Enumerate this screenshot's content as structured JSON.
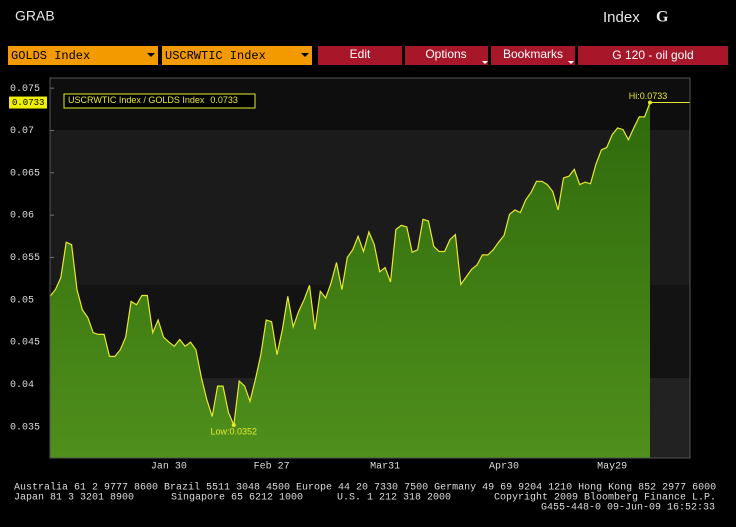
{
  "ui": {
    "top_left": "GRAB",
    "top_right_text": "Index",
    "top_right_key": "G",
    "field1": "GOLDS Index",
    "field2": "USCRWTIC Index",
    "buttons": [
      "Edit",
      "Options",
      "Bookmarks"
    ],
    "page_title": "G 120 - oil gold",
    "footer": [
      "Australia 61 2 9777 8600 Brazil 5511 3048 4500 Europe 44 20 7330 7500 Germany 49 69 9204 1210 Hong Kong 852 2977 6000",
      "Japan 81 3 3201 8900",
      "Singapore 65 6212 1000",
      "U.S. 1 212 318 2000",
      "Copyright 2009 Bloomberg Finance L.P.",
      "G455-448-0 09-Jun-09 16:52:33"
    ]
  },
  "chart_data": {
    "type": "area",
    "categories": [
      null,
      null,
      null,
      null,
      null,
      null,
      null,
      null,
      null,
      null,
      null,
      null,
      null,
      null,
      null,
      null,
      null,
      null,
      null,
      null,
      null,
      null,
      "Jan 30",
      null,
      null,
      null,
      null,
      null,
      null,
      null,
      null,
      null,
      null,
      null,
      null,
      null,
      null,
      null,
      null,
      null,
      null,
      "Feb 27",
      null,
      null,
      null,
      null,
      null,
      null,
      null,
      null,
      null,
      null,
      null,
      null,
      null,
      null,
      null,
      null,
      null,
      null,
      null,
      null,
      "Mar31",
      null,
      null,
      null,
      null,
      null,
      null,
      null,
      null,
      null,
      null,
      null,
      null,
      null,
      null,
      null,
      null,
      null,
      null,
      null,
      null,
      null,
      "Apr30",
      null,
      null,
      null,
      null,
      null,
      null,
      null,
      null,
      null,
      null,
      null,
      null,
      null,
      null,
      null,
      null,
      null,
      null,
      null,
      "May29",
      null,
      null,
      null,
      null,
      null,
      null,
      null
    ],
    "series": [
      {
        "name": "USCRWTIC Index / GOLDS Index",
        "color": "#e8e830",
        "fill": "#3f7f14",
        "values": [
          0.0504,
          0.0512,
          0.0526,
          0.0568,
          0.0565,
          0.0512,
          0.0488,
          0.0479,
          0.0461,
          0.0459,
          0.0459,
          0.0433,
          0.0433,
          0.0441,
          0.0456,
          0.0498,
          0.0494,
          0.0505,
          0.0505,
          0.0461,
          0.0476,
          0.0456,
          0.045,
          0.0445,
          0.0453,
          0.0445,
          0.045,
          0.0441,
          0.0408,
          0.0382,
          0.0362,
          0.0398,
          0.0398,
          0.0367,
          0.0352,
          0.0404,
          0.0398,
          0.038,
          0.0406,
          0.0435,
          0.0476,
          0.0474,
          0.0435,
          0.0465,
          0.0504,
          0.0468,
          0.0486,
          0.05,
          0.0517,
          0.0465,
          0.051,
          0.0502,
          0.052,
          0.0544,
          0.0512,
          0.055,
          0.0559,
          0.0575,
          0.0557,
          0.058,
          0.0565,
          0.0533,
          0.0538,
          0.0521,
          0.0583,
          0.0588,
          0.0586,
          0.0556,
          0.0559,
          0.0595,
          0.0593,
          0.0563,
          0.0557,
          0.0557,
          0.0571,
          0.0577,
          0.0518,
          0.0527,
          0.0536,
          0.0541,
          0.0553,
          0.0553,
          0.0559,
          0.0568,
          0.0576,
          0.0601,
          0.0606,
          0.0603,
          0.0618,
          0.0627,
          0.064,
          0.064,
          0.0636,
          0.0628,
          0.0606,
          0.0644,
          0.0646,
          0.0654,
          0.0636,
          0.0639,
          0.0637,
          0.066,
          0.0677,
          0.068,
          0.0695,
          0.0703,
          0.0701,
          0.0689,
          0.0703,
          0.0716,
          0.0716,
          0.0733
        ]
      }
    ],
    "annotations": {
      "hi": "Hi:0.0733",
      "low": "Low:0.0352"
    },
    "ylim": [
      0.0313,
      0.0762
    ],
    "yticks": [
      0.035,
      0.04,
      0.045,
      0.05,
      0.055,
      0.06,
      0.065,
      0.07,
      0.075
    ],
    "grid": false,
    "legend": "top-left"
  }
}
